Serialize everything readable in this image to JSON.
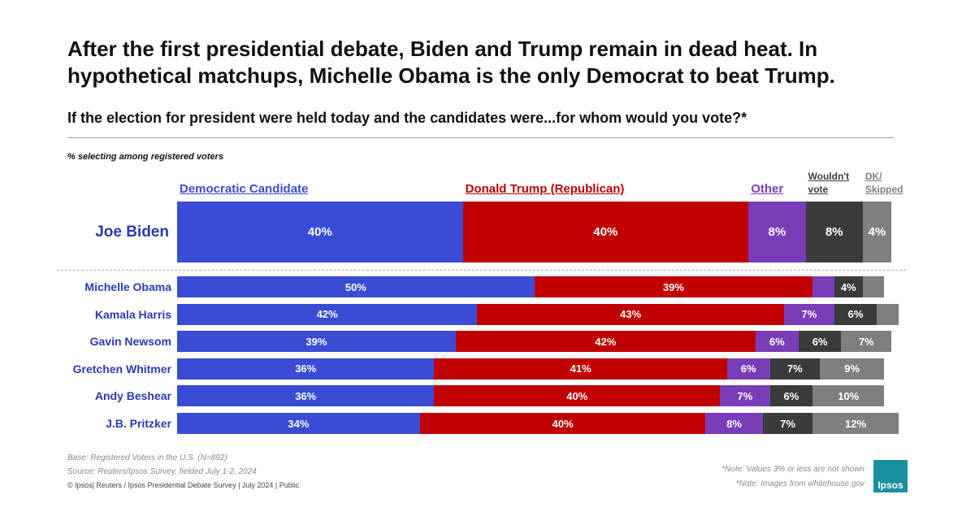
{
  "chart_data": {
    "type": "stacked-bar",
    "title": "After the first presidential debate, Biden and Trump remain in dead heat. In hypothetical matchups, Michelle Obama is the only Democrat to beat Trump.",
    "subtitle": "If the election for president were held today and the candidates were...for whom would you vote?*",
    "note": "% selecting among registered voters",
    "categories": [
      "Joe Biden",
      "Michelle Obama",
      "Kamala Harris",
      "Gavin Newsom",
      "Gretchen Whitmer",
      "Andy Beshear",
      "J.B. Pritzker"
    ],
    "xlim": [
      0,
      100
    ],
    "series": [
      {
        "name": "Democratic Candidate",
        "color": "#3a4bd6",
        "values": [
          40,
          50,
          42,
          39,
          36,
          36,
          34
        ],
        "value_labels": [
          "40%",
          "50%",
          "42%",
          "39%",
          "36%",
          "36%",
          "34%"
        ]
      },
      {
        "name": "Donald Trump (Republican)",
        "color": "#c00000",
        "values": [
          40,
          39,
          43,
          42,
          41,
          40,
          40
        ],
        "value_labels": [
          "40%",
          "39%",
          "43%",
          "42%",
          "41%",
          "40%",
          "40%"
        ]
      },
      {
        "name": "Other",
        "color": "#7a3db8",
        "values": [
          8,
          3,
          7,
          6,
          6,
          7,
          8
        ],
        "value_labels": [
          "8%",
          null,
          "7%",
          "6%",
          "6%",
          "7%",
          "8%"
        ]
      },
      {
        "name": "Wouldn't vote",
        "color": "#3b3b3b",
        "values": [
          8,
          4,
          6,
          6,
          7,
          6,
          7
        ],
        "value_labels": [
          "8%",
          "4%",
          "6%",
          "6%",
          "7%",
          "6%",
          "7%"
        ]
      },
      {
        "name": "DK/ Skipped",
        "color": "#7f7f7f",
        "values": [
          4,
          3,
          3,
          7,
          9,
          10,
          12
        ],
        "value_labels": [
          "4%",
          null,
          null,
          "7%",
          "9%",
          "10%",
          "12%"
        ]
      }
    ],
    "footnotes": [
      "Base: Registered Voters in the U.S. (N=892)",
      "Source: Reuters/Ipsos Survey, fielded July 1-2, 2024",
      "© Ipsos| Reuters / Ipsos Presidential Debate Survey | July 2024 | Public"
    ],
    "notes": [
      "*Note: Values 3% or less are not shown",
      "*Note: Images from whitehouse.gov"
    ],
    "logo": "Ipsos"
  }
}
